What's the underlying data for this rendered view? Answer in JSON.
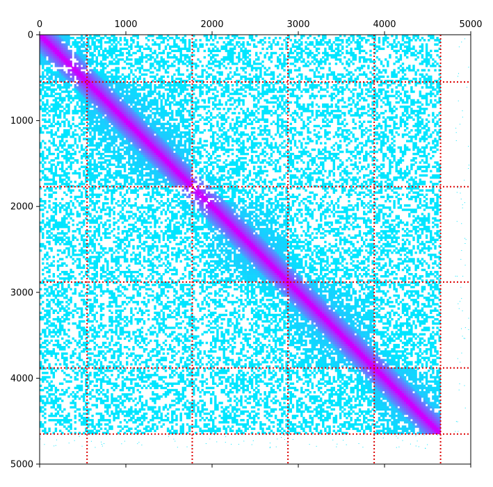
{
  "chart_data": {
    "type": "heatmap",
    "title": "",
    "xlabel": "",
    "ylabel": "",
    "xlim": [
      0,
      5000
    ],
    "ylim": [
      5000,
      0
    ],
    "x_axis_position": "top",
    "y_axis_inverted": true,
    "x_ticks": [
      0,
      1000,
      2000,
      3000,
      4000,
      5000
    ],
    "y_ticks": [
      0,
      1000,
      2000,
      3000,
      4000,
      5000
    ],
    "matrix_extent": 4650,
    "boundaries": [
      550,
      1770,
      2880,
      3880,
      4650
    ],
    "colors": {
      "low": "#00e5ff",
      "mid": "#3ab0ff",
      "high": "#cc00ff",
      "boundary": "#dd0000",
      "background": "#ffffff"
    },
    "blocks": [
      {
        "start": 0,
        "end": 550
      },
      {
        "start": 550,
        "end": 1770
      },
      {
        "start": 1770,
        "end": 2880
      },
      {
        "start": 2880,
        "end": 3880
      },
      {
        "start": 3880,
        "end": 4650
      }
    ],
    "sparse_bands": [
      {
        "start": 340,
        "end": 440
      },
      {
        "start": 1750,
        "end": 1950
      }
    ],
    "grid": false,
    "legend": "none"
  }
}
